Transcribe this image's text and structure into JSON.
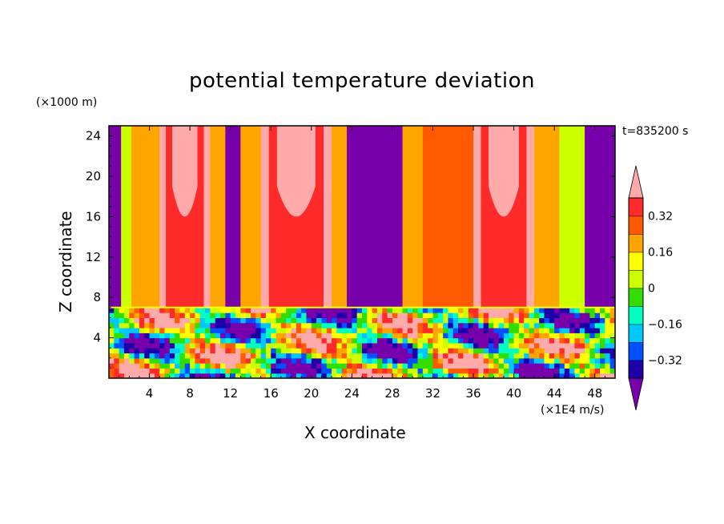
{
  "chart_data": {
    "type": "heatmap",
    "title": "potential temperature deviation",
    "xlabel": "X coordinate",
    "ylabel": "Z coordinate",
    "x_units": "(×1E4 m/s)",
    "y_units": "(×1000 m)",
    "time_label": "t=835200 s",
    "xlim": [
      0,
      50
    ],
    "ylim": [
      0,
      25
    ],
    "x_ticks": [
      "4",
      "8",
      "12",
      "16",
      "20",
      "24",
      "28",
      "32",
      "36",
      "40",
      "44",
      "48"
    ],
    "y_ticks": [
      "4",
      "8",
      "12",
      "16",
      "20",
      "24"
    ],
    "colorbar": {
      "levels": [
        -0.4,
        -0.32,
        -0.24,
        -0.16,
        -0.08,
        0,
        0.08,
        0.16,
        0.24,
        0.32,
        0.4
      ],
      "tick_labels": [
        "0.32",
        "0.16",
        "0",
        "−0.16",
        "−0.32"
      ],
      "tick_values": [
        0.32,
        0.16,
        0,
        -0.16,
        -0.32
      ],
      "colors": [
        "#7700aa",
        "#1d00a8",
        "#0050ff",
        "#00c8ff",
        "#00ffc0",
        "#33dd00",
        "#ccff00",
        "#ffff00",
        "#ffa500",
        "#ff5a00",
        "#ff2a2a",
        "#ffaaaa"
      ]
    },
    "upper_layer_columns": [
      {
        "x_start": 0,
        "x_end": 1.2,
        "value": -0.45
      },
      {
        "x_start": 1.2,
        "x_end": 2.2,
        "value": 0.0
      },
      {
        "x_start": 2.2,
        "x_end": 5.0,
        "value": 0.16
      },
      {
        "x_start": 5.0,
        "x_end": 10.0,
        "value": 0.4
      },
      {
        "x_start": 10.0,
        "x_end": 11.5,
        "value": 0.16
      },
      {
        "x_start": 11.5,
        "x_end": 13.0,
        "value": -0.45
      },
      {
        "x_start": 13.0,
        "x_end": 15.0,
        "value": 0.16
      },
      {
        "x_start": 15.0,
        "x_end": 22.0,
        "value": 0.4
      },
      {
        "x_start": 22.0,
        "x_end": 23.5,
        "value": 0.16
      },
      {
        "x_start": 23.5,
        "x_end": 29.0,
        "value": -0.45
      },
      {
        "x_start": 29.0,
        "x_end": 31.0,
        "value": 0.16
      },
      {
        "x_start": 31.0,
        "x_end": 36.0,
        "value": 0.3
      },
      {
        "x_start": 36.0,
        "x_end": 42.0,
        "value": 0.4
      },
      {
        "x_start": 42.0,
        "x_end": 44.5,
        "value": 0.16
      },
      {
        "x_start": 44.5,
        "x_end": 47.0,
        "value": 0.0
      },
      {
        "x_start": 47.0,
        "x_end": 50.0,
        "value": -0.45
      }
    ],
    "inversion_height": 7.0
  }
}
